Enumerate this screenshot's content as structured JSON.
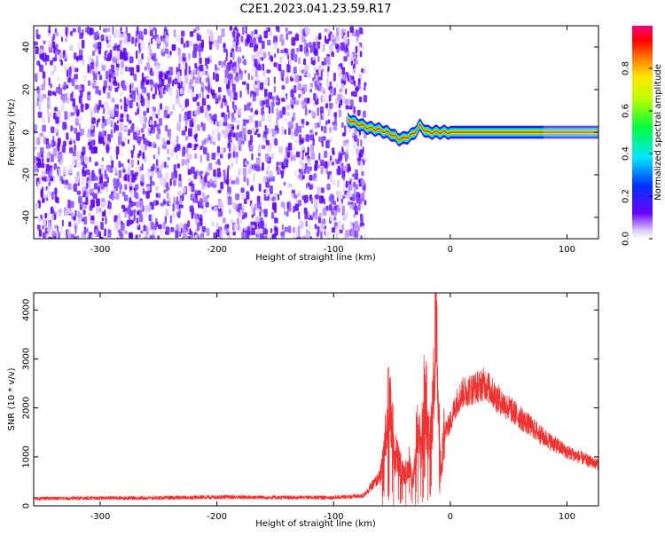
{
  "title": "C2E1.2023.041.23.59.R17",
  "chart_data": [
    {
      "type": "heatmap",
      "xlabel": "Height of straight line (km)",
      "ylabel": "Frequency (Hz)",
      "xlim": [
        -357,
        127
      ],
      "ylim": [
        -50,
        50
      ],
      "x_ticks": [
        -300,
        -200,
        -100,
        0,
        100
      ],
      "y_ticks": [
        -40,
        -20,
        0,
        20,
        40
      ],
      "colorbar": {
        "label": "Normalized spectral amplitude",
        "range": [
          0,
          1
        ],
        "ticks": [
          0.0,
          0.2,
          0.4,
          0.6,
          0.8
        ]
      },
      "noise_region_x": [
        -357,
        -80
      ],
      "signal_track": {
        "x": [
          -88,
          -80,
          -70,
          -60,
          -50,
          -45,
          -40,
          -32,
          -26,
          -20,
          -10,
          0,
          50,
          100,
          127
        ],
        "freq": [
          6,
          4,
          2,
          1,
          -1,
          -3,
          -3,
          -1,
          3,
          0,
          0,
          0,
          0,
          0,
          0
        ]
      }
    },
    {
      "type": "line",
      "xlabel": "Height of straight line (km)",
      "ylabel": "SNR (10 * v/v)",
      "xlim": [
        -357,
        127
      ],
      "ylim": [
        0,
        4350
      ],
      "x_ticks": [
        -300,
        -200,
        -100,
        0,
        100
      ],
      "y_ticks": [
        0,
        1000,
        2000,
        3000,
        4000
      ],
      "series": [
        {
          "color": "#ee3333",
          "x": [
            -357,
            -300,
            -250,
            -200,
            -150,
            -100,
            -75,
            -60,
            -55,
            -52,
            -48,
            -45,
            -42,
            -38,
            -35,
            -32,
            -28,
            -25,
            -22,
            -18,
            -15,
            -12,
            -10,
            -8,
            -5,
            0,
            5,
            10,
            20,
            30,
            40,
            50,
            60,
            70,
            80,
            90,
            100,
            110,
            120,
            127
          ],
          "y": [
            150,
            160,
            160,
            180,
            170,
            170,
            200,
            600,
            1400,
            2100,
            900,
            1000,
            700,
            600,
            900,
            400,
            1600,
            1000,
            2100,
            1300,
            1900,
            4300,
            1700,
            600,
            1500,
            1700,
            2100,
            2300,
            2400,
            2500,
            2200,
            2000,
            1800,
            1600,
            1400,
            1250,
            1100,
            1000,
            900,
            850
          ]
        }
      ]
    }
  ]
}
